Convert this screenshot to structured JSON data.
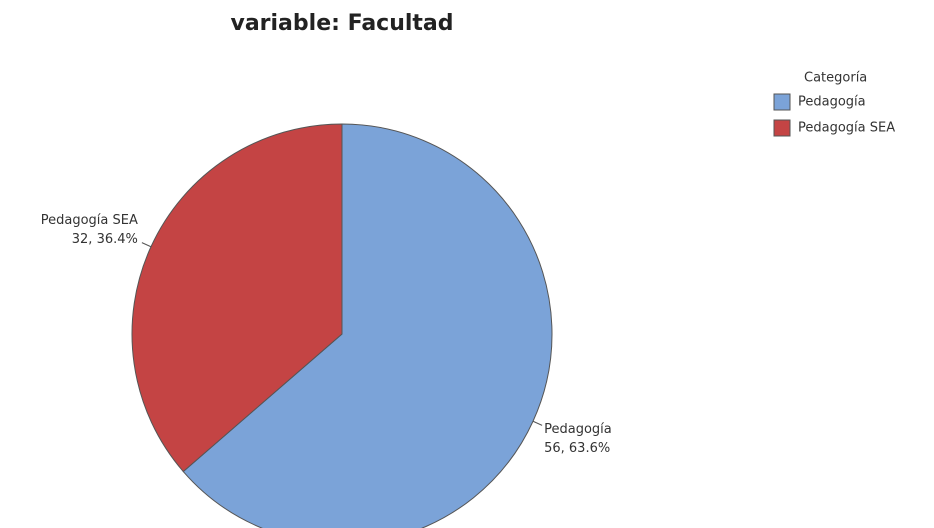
{
  "chart_data": {
    "type": "pie",
    "title": "variable: Facultad",
    "legend_title": "Categoría",
    "categories": [
      "Pedagogía",
      "Pedagogía SEA"
    ],
    "values": [
      56,
      32
    ],
    "value_labels": [
      "56, 63.6%",
      "32, 36.4%"
    ],
    "colors": [
      "#7ba3d8",
      "#c44444"
    ],
    "legend": "upper right"
  }
}
